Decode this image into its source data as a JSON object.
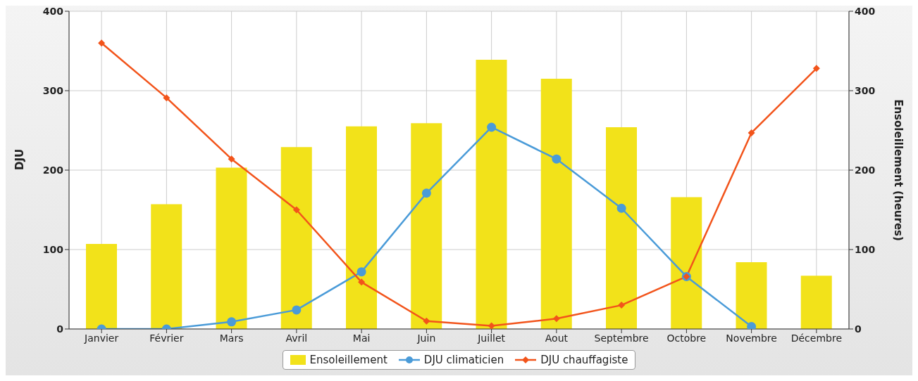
{
  "chart_data": {
    "type": "bar",
    "categories": [
      "Janvier",
      "Février",
      "Mars",
      "Avril",
      "Mai",
      "Juin",
      "Juillet",
      "Aout",
      "Septembre",
      "Octobre",
      "Novembre",
      "Décembre"
    ],
    "ylabel": "DJU",
    "y2label": "Ensoleillement (heures)",
    "series": [
      {
        "name": "Ensoleillement",
        "axis": "y2",
        "color": "#f2e21a",
        "values": [
          107,
          157,
          203,
          229,
          255,
          259,
          339,
          315,
          254,
          166,
          84,
          67
        ]
      },
      {
        "name": "DJU climaticien",
        "type": "line",
        "color": "#4a9bd8",
        "values": [
          0,
          0,
          9,
          24,
          72,
          171,
          254,
          214,
          152,
          66,
          3,
          null
        ]
      },
      {
        "name": "DJU chauffagiste",
        "type": "line",
        "color": "#f2541b",
        "values": [
          360,
          291,
          214,
          150,
          59,
          10,
          4,
          13,
          30,
          66,
          247,
          328
        ],
        "marker": "diamond"
      }
    ],
    "marker": "circle",
    "ylim": [
      0,
      400
    ],
    "yticks": [
      0,
      100,
      200,
      300,
      400
    ],
    "y2lim": [
      0,
      400
    ],
    "y2ticks": [
      0,
      100,
      200,
      300,
      400
    ],
    "grid": true,
    "legend": "bottom"
  }
}
